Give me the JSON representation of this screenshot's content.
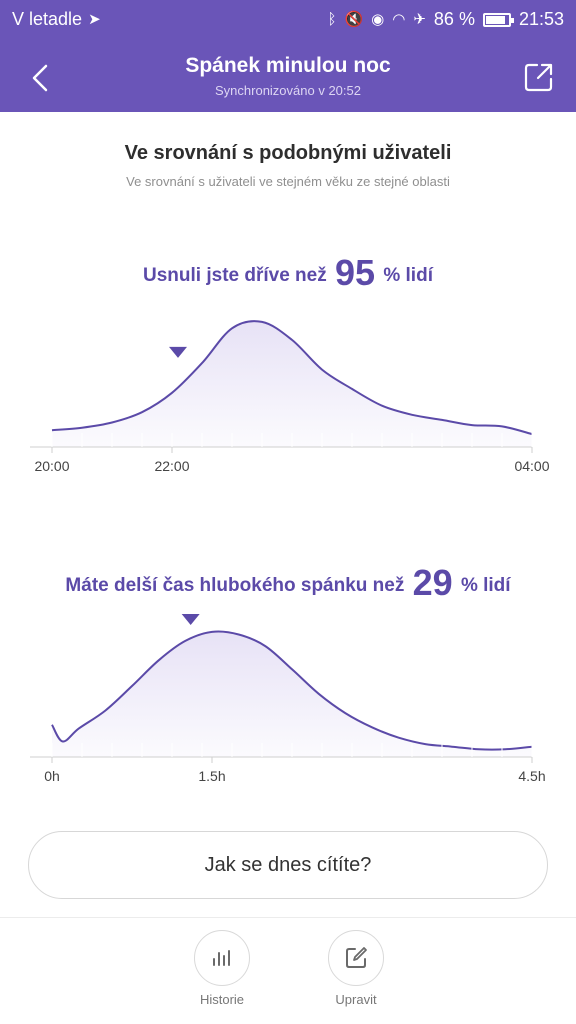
{
  "status_bar": {
    "carrier": "V letadle",
    "battery_percent": "86 %",
    "battery_level": 0.86,
    "time": "21:53",
    "icons": [
      "bluetooth-icon",
      "mute-icon",
      "eye-icon",
      "wifi-icon",
      "airplane-icon",
      "battery-icon"
    ]
  },
  "header": {
    "title": "Spánek minulou noc",
    "subtitle": "Synchronizováno v 20:52",
    "back_icon": "chevron-left-icon",
    "share_icon": "share-icon"
  },
  "comparison": {
    "title": "Ve srovnání s podobnými uživateli",
    "subtitle": "Ve srovnání s uživateli ve stejném věku ze stejné oblasti"
  },
  "sleep_onset": {
    "prefix": "Usnuli jste dříve než",
    "value": "95",
    "suffix": "% lidí"
  },
  "deep_sleep": {
    "prefix": "Máte delší čas hlubokého spánku než",
    "value": "29",
    "suffix": "% lidí"
  },
  "feel_button": {
    "label": "Jak se dnes cítíte?"
  },
  "bottom_tabs": [
    {
      "label": "Historie",
      "icon": "bar-chart-icon"
    },
    {
      "label": "Upravit",
      "icon": "edit-icon"
    }
  ],
  "colors": {
    "accent": "#6a55b8",
    "curve": "#5b4aa8",
    "fill": "#e7e2f6"
  },
  "chart_data": [
    {
      "type": "area",
      "x_tick_labels": [
        "20:00",
        "22:00",
        "04:00"
      ],
      "x_tick_hours": [
        0,
        2,
        8
      ],
      "x_range": [
        0,
        8
      ],
      "y_range": [
        0,
        1
      ],
      "grid": false,
      "marker_hour": 2.1,
      "x": [
        0,
        0.5,
        1,
        1.5,
        2,
        2.5,
        3,
        3.5,
        4,
        4.5,
        5,
        5.5,
        6,
        6.5,
        7,
        7.5,
        8
      ],
      "values": [
        0.13,
        0.15,
        0.19,
        0.27,
        0.42,
        0.65,
        0.92,
        0.97,
        0.83,
        0.6,
        0.45,
        0.32,
        0.25,
        0.21,
        0.17,
        0.16,
        0.1
      ]
    },
    {
      "type": "area",
      "x_tick_labels": [
        "0h",
        "1.5h",
        "4.5h"
      ],
      "x_tick_hours": [
        0,
        1.5,
        4.5
      ],
      "x_range": [
        0,
        4.5
      ],
      "y_range": [
        0,
        1
      ],
      "grid": false,
      "marker_hour": 1.3,
      "x": [
        0,
        0.1,
        0.25,
        0.5,
        0.75,
        1,
        1.25,
        1.5,
        1.75,
        2,
        2.25,
        2.5,
        2.75,
        3,
        3.25,
        3.5,
        3.75,
        4,
        4.25,
        4.5
      ],
      "values": [
        0.25,
        0.12,
        0.22,
        0.36,
        0.55,
        0.75,
        0.9,
        0.97,
        0.95,
        0.86,
        0.68,
        0.49,
        0.34,
        0.23,
        0.15,
        0.1,
        0.08,
        0.06,
        0.06,
        0.08
      ]
    }
  ]
}
